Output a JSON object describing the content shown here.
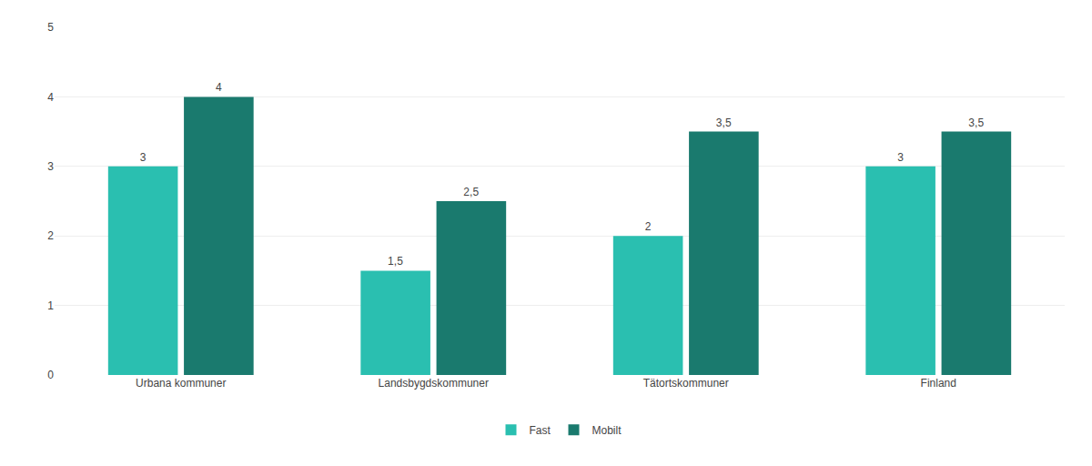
{
  "chart_data": {
    "type": "bar",
    "categories": [
      "Urbana kommuner",
      "Landsbygdskommuner",
      "Tätortskommuner",
      "Finland"
    ],
    "series": [
      {
        "name": "Fast",
        "color": "#2abfb0",
        "values": [
          3.0,
          1.5,
          2.0,
          3.0
        ],
        "value_labels": [
          "3",
          "1,5",
          "2",
          "3"
        ]
      },
      {
        "name": "Mobilt",
        "color": "#1a7a6e",
        "values": [
          4.0,
          2.5,
          3.5,
          3.5
        ],
        "value_labels": [
          "4",
          "2,5",
          "3,5",
          "3,5"
        ]
      }
    ],
    "ylim": [
      0,
      5
    ],
    "yticks": [
      0,
      1,
      2,
      3,
      4,
      5
    ],
    "grid": true,
    "legend": "bottom",
    "data_labels": true
  }
}
